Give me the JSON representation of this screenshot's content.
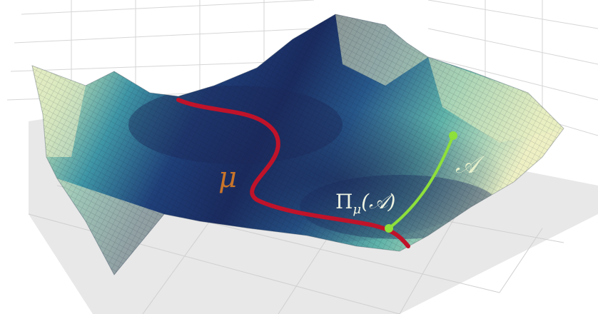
{
  "labels": {
    "mu": "μ",
    "set": "𝒜",
    "projection": "Π",
    "projection_sub": "μ",
    "projection_arg": "(𝒜)"
  },
  "colors": {
    "manifold_curve": "#c0132a",
    "projection_path": "#8ee03a",
    "surface_low": "#1b2a5e",
    "surface_mid": "#2f7f9a",
    "surface_high": "#f3f2c8",
    "floor": "#e7e7e7",
    "grid": "#d9d9d9"
  }
}
